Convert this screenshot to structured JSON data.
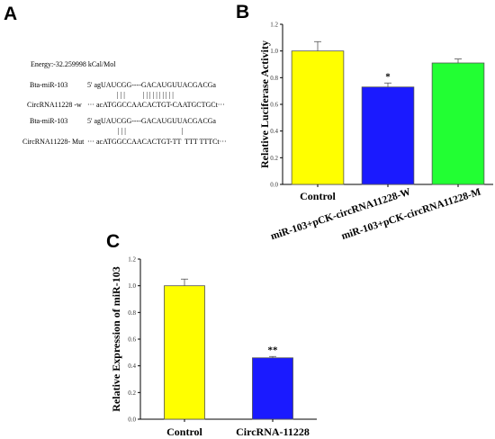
{
  "panels": {
    "a": "A",
    "b": "B",
    "c": "C"
  },
  "panel_a": {
    "energy": "Energy:-32.259998 kCal/Mol",
    "wt": {
      "mirna_label": "Bta-miR-103",
      "mirna_seq": "5' agUAUCGG----GACAUGUUACGACGa",
      "pairs": "| | |          | | | | | | | | | |",
      "target_label": "CircRNA11228 -w",
      "target_seq": "··· acATGGCCAACACTGT-CAATGCTGCt···"
    },
    "mut": {
      "mirna_label": "Bta-miR-103",
      "mirna_seq": "5' agUAUCGG----GACAUGUUACGACGa",
      "pairs": "| | |                               |",
      "target_label": "CircRNA11228- Mut",
      "target_seq": "··· acATGGCCAACACTGT-TT  TTT TTTCt···"
    }
  },
  "chart_data": [
    {
      "type": "bar",
      "panel": "B",
      "categories": [
        "Control",
        "miR-103+pCK-circRNA11228-W",
        "miR-103+pCK-circRNA11228-M"
      ],
      "values": [
        1.0,
        0.73,
        0.91
      ],
      "errors": [
        0.07,
        0.03,
        0.03
      ],
      "colors": [
        "#ffff00",
        "#1a1aff",
        "#22ff33"
      ],
      "annotations": [
        "",
        "*",
        ""
      ],
      "ylabel": "Relative Luciferase Activity",
      "ylim": [
        0,
        1.2
      ],
      "yticks": [
        "0.0",
        "0.2",
        "0.4",
        "0.6",
        "0.8",
        "1.0",
        "1.2"
      ]
    },
    {
      "type": "bar",
      "panel": "C",
      "categories": [
        "Control",
        "CircRNA-11228"
      ],
      "values": [
        1.0,
        0.46
      ],
      "errors": [
        0.05,
        0.01
      ],
      "colors": [
        "#ffff00",
        "#1a1aff"
      ],
      "annotations": [
        "",
        "**"
      ],
      "ylabel": "Relative Expression of miR-103",
      "ylim": [
        0,
        1.2
      ],
      "yticks": [
        "0.0",
        "0.2",
        "0.4",
        "0.6",
        "0.8",
        "1.0",
        "1.2"
      ]
    }
  ]
}
